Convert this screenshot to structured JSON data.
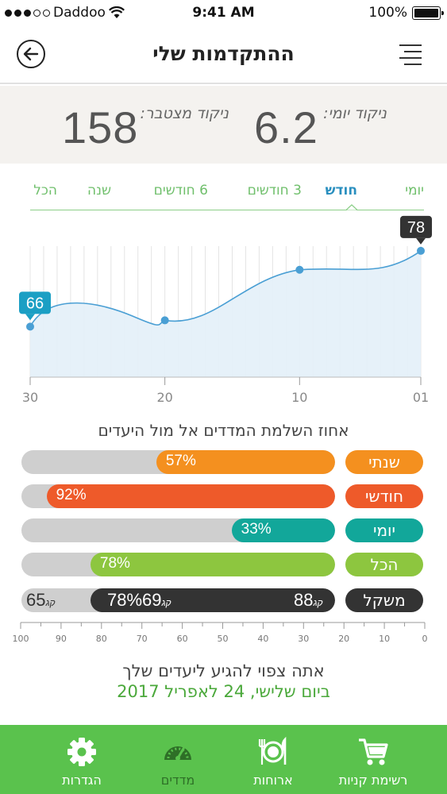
{
  "status_bar": {
    "carrier": "Daddoo",
    "time": "9:41 AM",
    "battery": "100%"
  },
  "header": {
    "title": "ההתקדמות שלי"
  },
  "scores": {
    "daily_label": "ניקוד יומי:",
    "daily_value": "6.2",
    "total_label": "ניקוד מצטבר:",
    "total_value": "158"
  },
  "tabs": [
    {
      "label": "יומי",
      "active": false
    },
    {
      "label": "חודש",
      "active": true
    },
    {
      "label": "3 חודשים",
      "active": false
    },
    {
      "label": "6 חודשים",
      "active": false
    },
    {
      "label": "שנה",
      "active": false
    },
    {
      "label": "הכל",
      "active": false
    }
  ],
  "chart_data": {
    "type": "area",
    "x": [
      30,
      20,
      10,
      1
    ],
    "y": [
      66,
      67,
      75,
      78
    ],
    "xticks": [
      "30",
      "20",
      "10",
      "01"
    ],
    "callouts": [
      {
        "x": 30,
        "label": "66"
      },
      {
        "x": 1,
        "label": "78"
      }
    ],
    "ylim": [
      58,
      80
    ],
    "grid": "vertical",
    "colors": {
      "line": "#4a9fd4",
      "fill": "#e3f0f8",
      "callout_first": "#1b9fc4",
      "callout_last": "#333333"
    }
  },
  "progress": {
    "title": "אחוז השלמת המדדים אל מול היעדים",
    "rows": [
      {
        "label": "שנתי",
        "percent": 57,
        "percent_text": "57%",
        "color": "#f4901f"
      },
      {
        "label": "חודשי",
        "percent": 92,
        "percent_text": "92%",
        "color": "#ee5a2a"
      },
      {
        "label": "יומי",
        "percent": 33,
        "percent_text": "33%",
        "color": "#12a79a"
      },
      {
        "label": "הכל",
        "percent": 78,
        "percent_text": "78%",
        "color": "#8dc63f"
      }
    ],
    "weight": {
      "label": "משקל",
      "start": "88",
      "current": "69",
      "goal": "65",
      "unit": "קג",
      "percent": 78,
      "percent_text": "78%",
      "color": "#333333"
    },
    "scale_ticks": [
      "100",
      "90",
      "80",
      "70",
      "60",
      "50",
      "40",
      "30",
      "20",
      "10",
      "0"
    ]
  },
  "prediction": {
    "line1": "אתה צפוי להגיע ליעדים שלך",
    "line2": "ביום שלישי, 24 לאפריל 2017"
  },
  "bottom_nav": [
    {
      "label": "רשימת קניות",
      "icon": "cart-icon",
      "active": false
    },
    {
      "label": "ארוחות",
      "icon": "plate-icon",
      "active": false
    },
    {
      "label": "מדדים",
      "icon": "speedometer-icon",
      "active": true
    },
    {
      "label": "הגדרות",
      "icon": "gear-icon",
      "active": false
    }
  ]
}
